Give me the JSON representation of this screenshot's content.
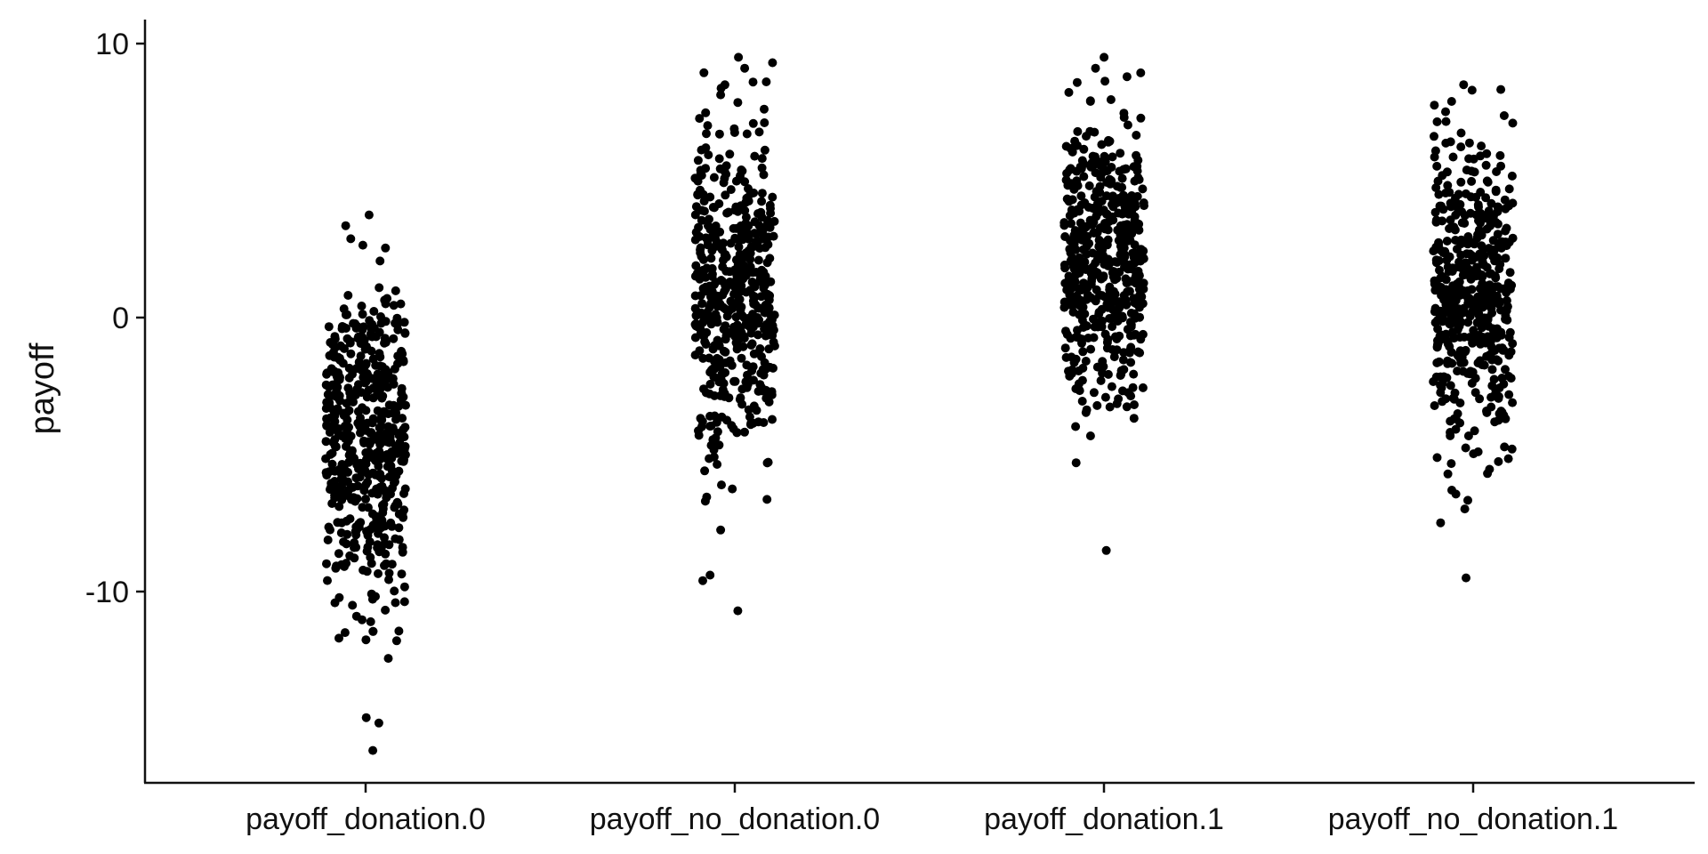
{
  "chart_data": {
    "type": "scatter",
    "subtype": "jitter-strip",
    "title": "",
    "xlabel": "",
    "ylabel": "payoff",
    "categories": [
      "payoff_donation.0",
      "payoff_no_donation.0",
      "payoff_donation.1",
      "payoff_no_donation.1"
    ],
    "ylim": [
      -17,
      11
    ],
    "yticks": [
      10,
      0,
      -10
    ],
    "ytick_labels": [
      "10",
      "0",
      "-10"
    ],
    "grid": false,
    "legend": "none",
    "point_color": "#000000",
    "series": [
      {
        "category": "payoff_donation.0",
        "points_per_group": 500,
        "center": -4.3,
        "spread": 2.9,
        "max": 4.6,
        "outliers": [
          -11.7,
          -14.6,
          -14.8,
          -15.8,
          -11.1,
          -10.5,
          -10.9
        ]
      },
      {
        "category": "payoff_no_donation.0",
        "points_per_group": 500,
        "center": 1.0,
        "spread": 3.0,
        "max": 9.5,
        "outliers": [
          -9.4,
          -9.6,
          -10.7,
          -6.7,
          9.5,
          9.1
        ]
      },
      {
        "category": "payoff_donation.1",
        "points_per_group": 500,
        "center": 2.3,
        "spread": 2.7,
        "max": 9.5,
        "outliers": [
          -8.5,
          -5.3,
          9.5,
          9.1
        ]
      },
      {
        "category": "payoff_no_donation.1",
        "points_per_group": 500,
        "center": 0.8,
        "spread": 2.8,
        "max": 8.5,
        "outliers": [
          -9.5,
          -6.3,
          8.5,
          8.3
        ]
      }
    ]
  }
}
